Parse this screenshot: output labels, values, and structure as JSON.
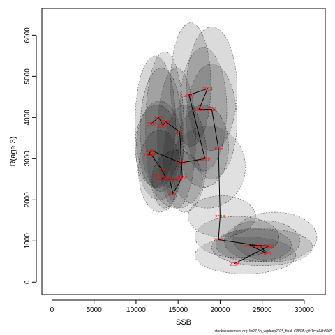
{
  "chart_data": {
    "type": "scatter",
    "xlabel": "SSB",
    "ylabel": "R(age 3)",
    "xlim": [
      -1200,
      32500
    ],
    "ylim": [
      -300,
      6650
    ],
    "x_ticks": [
      0,
      5000,
      10000,
      15000,
      20000,
      25000,
      30000
    ],
    "y_ticks": [
      0,
      1000,
      2000,
      3000,
      4000,
      5000,
      6000
    ],
    "point_label_color": "#ff0000",
    "line_color": "#000000",
    "points": [
      {
        "year": "1990",
        "x": 14900,
        "y": 2500
      },
      {
        "year": "1991",
        "x": 12800,
        "y": 2500
      },
      {
        "year": "1992",
        "x": 12700,
        "y": 2600
      },
      {
        "year": "1993",
        "x": 13500,
        "y": 2550
      },
      {
        "year": "1994",
        "x": 13000,
        "y": 2750
      },
      {
        "year": "1995",
        "x": 11800,
        "y": 3100
      },
      {
        "year": "1996",
        "x": 11500,
        "y": 3100
      },
      {
        "year": "1997",
        "x": 11800,
        "y": 3200
      },
      {
        "year": "1998",
        "x": 15300,
        "y": 2900
      },
      {
        "year": "1999",
        "x": 18200,
        "y": 3000
      },
      {
        "year": "2000",
        "x": 14000,
        "y": 2500
      },
      {
        "year": "2001",
        "x": 14400,
        "y": 2150
      },
      {
        "year": "2002",
        "x": 15500,
        "y": 2550
      },
      {
        "year": "2003",
        "x": 11800,
        "y": 3850
      },
      {
        "year": "2004",
        "x": 13200,
        "y": 3800
      },
      {
        "year": "2005",
        "x": 12700,
        "y": 4000
      },
      {
        "year": "2006",
        "x": 13500,
        "y": 3900
      },
      {
        "year": "2007",
        "x": 15200,
        "y": 3650
      },
      {
        "year": "2013",
        "x": 16300,
        "y": 4550
      },
      {
        "year": "2014",
        "x": 18500,
        "y": 4700
      },
      {
        "year": "2015",
        "x": 17500,
        "y": 4200
      },
      {
        "year": "2016",
        "x": 19000,
        "y": 4200
      },
      {
        "year": "2017",
        "x": 19800,
        "y": 3250
      },
      {
        "year": "2018",
        "x": 20000,
        "y": 1600
      },
      {
        "year": "2019",
        "x": 19800,
        "y": 1030
      },
      {
        "year": "2020",
        "x": 24800,
        "y": 880
      },
      {
        "year": "2021",
        "x": 25500,
        "y": 700
      },
      {
        "year": "2022",
        "x": 23500,
        "y": 900
      },
      {
        "year": "2023",
        "x": 25800,
        "y": 880
      },
      {
        "year": "2024",
        "x": 21700,
        "y": 450
      }
    ],
    "path_order": [
      "2003",
      "2005",
      "2004",
      "2006",
      "2007",
      "2002",
      "2001",
      "2000",
      "1990",
      "1991",
      "1993",
      "1994",
      "1995",
      "1996",
      "1997",
      "1998",
      "1999",
      "2013",
      "2014",
      "2015",
      "2016",
      "2017",
      "2018",
      "2019",
      "2020",
      "2021",
      "2022",
      "2023",
      "2024"
    ],
    "confidence_ellipses": [
      {
        "year": "1990",
        "cx": 14900,
        "cy": 2500,
        "rx": 3000,
        "ry": 700,
        "fill": 0.12
      },
      {
        "year": "1991",
        "cx": 12800,
        "cy": 2700,
        "rx": 2500,
        "ry": 1000,
        "fill": 0.14
      },
      {
        "year": "1992",
        "cx": 12800,
        "cy": 3200,
        "rx": 2800,
        "ry": 1200,
        "fill": 0.14
      },
      {
        "year": "1995",
        "cx": 12500,
        "cy": 3300,
        "rx": 2600,
        "ry": 1000,
        "fill": 0.14
      },
      {
        "year": "1997",
        "cx": 13000,
        "cy": 3700,
        "rx": 2500,
        "ry": 1500,
        "fill": 0.13
      },
      {
        "year": "2003",
        "cx": 12300,
        "cy": 3900,
        "rx": 2400,
        "ry": 1600,
        "fill": 0.16
      },
      {
        "year": "2005",
        "cx": 13400,
        "cy": 3700,
        "rx": 2300,
        "ry": 1900,
        "fill": 0.13
      },
      {
        "year": "2007",
        "cx": 14800,
        "cy": 3500,
        "rx": 2300,
        "ry": 1700,
        "fill": 0.13
      },
      {
        "year": "1998",
        "cx": 15800,
        "cy": 3000,
        "rx": 2600,
        "ry": 1300,
        "fill": 0.13
      },
      {
        "year": "1999",
        "cx": 18000,
        "cy": 3300,
        "rx": 3000,
        "ry": 1000,
        "fill": 0.13
      },
      {
        "year": "2013",
        "cx": 16500,
        "cy": 4800,
        "rx": 2400,
        "ry": 1500,
        "fill": 0.14
      },
      {
        "year": "2014",
        "cx": 19000,
        "cy": 4700,
        "rx": 3000,
        "ry": 1500,
        "fill": 0.14
      },
      {
        "year": "2015",
        "cx": 18000,
        "cy": 4200,
        "rx": 2800,
        "ry": 1500,
        "fill": 0.13
      },
      {
        "year": "2016",
        "cx": 19000,
        "cy": 3900,
        "rx": 3000,
        "ry": 1400,
        "fill": 0.13
      },
      {
        "year": "2017",
        "cx": 18500,
        "cy": 2800,
        "rx": 4500,
        "ry": 1000,
        "fill": 0.12
      },
      {
        "year": "2018",
        "cx": 20200,
        "cy": 1600,
        "rx": 4000,
        "ry": 500,
        "fill": 0.12
      },
      {
        "year": "2019",
        "cx": 22000,
        "cy": 1100,
        "rx": 5000,
        "ry": 500,
        "fill": 0.12
      },
      {
        "year": "2020",
        "cx": 25000,
        "cy": 1000,
        "rx": 4500,
        "ry": 500,
        "fill": 0.13
      },
      {
        "year": "2021",
        "cx": 25000,
        "cy": 850,
        "rx": 6000,
        "ry": 450,
        "fill": 0.13
      },
      {
        "year": "2022",
        "cx": 24000,
        "cy": 900,
        "rx": 4500,
        "ry": 400,
        "fill": 0.13
      },
      {
        "year": "2023",
        "cx": 26500,
        "cy": 1100,
        "rx": 5000,
        "ry": 600,
        "fill": 0.12
      },
      {
        "year": "2024",
        "cx": 23000,
        "cy": 650,
        "rx": 6000,
        "ry": 450,
        "fill": 0.12
      }
    ]
  },
  "footer": "stockassessment.org, lin27.5b_wgdeep2025_final, r18895: git:1cc464b8065"
}
